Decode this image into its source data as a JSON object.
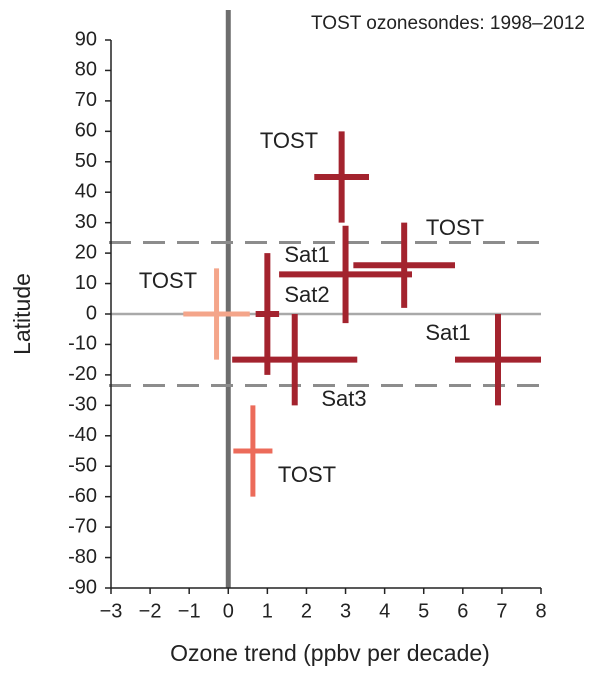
{
  "chart_data": {
    "type": "cross",
    "title": "TOST ozonesondes: 1998–2012",
    "x_label": "Ozone trend (ppbv per decade)",
    "y_label": "Latitude",
    "xlim": [
      -3,
      8
    ],
    "ylim": [
      -90,
      90
    ],
    "xticks": [
      {
        "value": -3,
        "label": "−3"
      },
      {
        "value": -2,
        "label": "−2"
      },
      {
        "value": -1,
        "label": "−1"
      },
      0,
      1,
      2,
      3,
      4,
      5,
      6,
      7,
      8
    ],
    "yticks": [
      90,
      80,
      70,
      60,
      50,
      40,
      30,
      20,
      10,
      0,
      -10,
      -20,
      -30,
      -40,
      -50,
      -60,
      -70,
      -80,
      -90
    ],
    "hlines": [
      23.5,
      -23.5
    ],
    "series": [
      {
        "name": "TOST",
        "color": "#a3232e",
        "x": 2.9,
        "y": 45,
        "xerr": 0.7,
        "yerr": 15
      },
      {
        "name": "TOST",
        "color": "#a3232e",
        "x": 4.5,
        "y": 16,
        "xerr": 1.3,
        "yerr": 14
      },
      {
        "name": "Sat1",
        "color": "#a3232e",
        "x": 3.0,
        "y": 13,
        "xerr": 1.7,
        "yerr": 16
      },
      {
        "name": "Sat2",
        "color": "#a3232e",
        "x": 1.0,
        "y": 0,
        "xerr": 0.3,
        "yerr": 20
      },
      {
        "name": "TOST",
        "color": "#a3232e",
        "x": 6.9,
        "y": -15,
        "xerr": 1.1,
        "yerr": 15
      },
      {
        "name": "Sat1",
        "color": "#a3232e",
        "x": 1.7,
        "y": -15,
        "xerr": 1.6,
        "yerr": 15
      },
      {
        "name": "Sat3",
        "color": "#f4a58a",
        "x": -0.3,
        "y": 0,
        "xerr": 0.85,
        "yerr": 15
      },
      {
        "name": "TOST",
        "color": "#ec6b5a",
        "x": 0.63,
        "y": -45,
        "xerr": 0.5,
        "yerr": 15
      }
    ]
  }
}
